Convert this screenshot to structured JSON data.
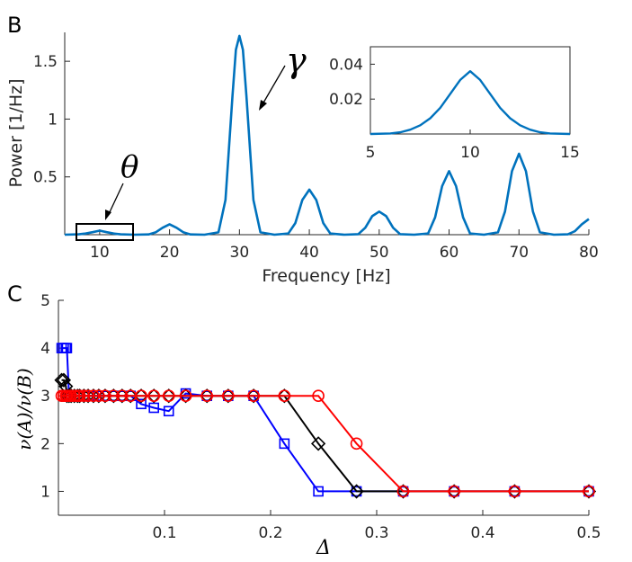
{
  "colors": {
    "spectrum": "#0072BD",
    "blue": "#0000FF",
    "black": "#000000",
    "red": "#FF0000",
    "axis": "#262626"
  },
  "chart_data": [
    {
      "panel": "B",
      "type": "line",
      "xlabel": "Frequency [Hz]",
      "ylabel": "Power [1/Hz]",
      "xlim": [
        5,
        80
      ],
      "ylim": [
        0,
        1.75
      ],
      "xticks": [
        "10",
        "20",
        "30",
        "40",
        "50",
        "60",
        "70",
        "80"
      ],
      "yticks": [
        "0.5",
        "1",
        "1.5"
      ],
      "x": [
        5,
        7,
        8,
        9,
        10,
        11,
        12,
        13,
        15,
        17,
        18,
        19,
        20,
        21,
        22,
        23,
        25,
        27,
        28,
        29,
        29.5,
        30,
        30.5,
        31,
        32,
        33,
        35,
        37,
        38,
        39,
        40,
        41,
        42,
        43,
        45,
        47,
        48,
        49,
        50,
        51,
        52,
        53,
        55,
        57,
        58,
        59,
        60,
        61,
        62,
        63,
        65,
        67,
        68,
        69,
        70,
        71,
        72,
        73,
        75,
        77,
        78,
        79,
        80
      ],
      "y": [
        0,
        0.003,
        0.01,
        0.022,
        0.035,
        0.022,
        0.01,
        0.003,
        0,
        0.002,
        0.02,
        0.06,
        0.09,
        0.06,
        0.02,
        0.002,
        0,
        0.02,
        0.3,
        1.2,
        1.6,
        1.72,
        1.6,
        1.2,
        0.3,
        0.02,
        0,
        0.01,
        0.1,
        0.3,
        0.39,
        0.3,
        0.1,
        0.01,
        0,
        0.005,
        0.06,
        0.16,
        0.2,
        0.16,
        0.06,
        0.005,
        0,
        0.01,
        0.15,
        0.42,
        0.55,
        0.42,
        0.15,
        0.01,
        0,
        0.02,
        0.2,
        0.55,
        0.7,
        0.55,
        0.2,
        0.02,
        0,
        0.003,
        0.03,
        0.09,
        0.135
      ],
      "annotations": [
        "γ",
        "θ"
      ],
      "inset": {
        "type": "line",
        "xlim": [
          5,
          15
        ],
        "ylim": [
          0,
          0.05
        ],
        "xticks": [
          "5",
          "10",
          "15"
        ],
        "yticks": [
          "0.02",
          "0.04"
        ],
        "x": [
          5,
          6,
          6.5,
          7,
          7.5,
          8,
          8.5,
          9,
          9.5,
          10,
          10.5,
          11,
          11.5,
          12,
          12.5,
          13,
          13.5,
          14,
          15
        ],
        "y": [
          0,
          0.0003,
          0.001,
          0.0025,
          0.005,
          0.009,
          0.015,
          0.023,
          0.031,
          0.036,
          0.031,
          0.023,
          0.015,
          0.009,
          0.005,
          0.0025,
          0.001,
          0.0003,
          0
        ]
      }
    },
    {
      "panel": "C",
      "type": "line",
      "xlabel": "Δ",
      "ylabel": "ν(A)/ν(B)",
      "xlim": [
        0,
        0.5
      ],
      "ylim": [
        0.5,
        5
      ],
      "xticks": [
        "0.1",
        "0.2",
        "0.3",
        "0.4",
        "0.5"
      ],
      "yticks": [
        "1",
        "2",
        "3",
        "4",
        "5"
      ],
      "series": [
        {
          "name": "blue squares",
          "marker": "square",
          "color": "#0000FF",
          "x": [
            0.003,
            0.005,
            0.007,
            0.008,
            0.01,
            0.012,
            0.015,
            0.018,
            0.02,
            0.024,
            0.028,
            0.033,
            0.038,
            0.044,
            0.052,
            0.06,
            0.068,
            0.078,
            0.09,
            0.104,
            0.12,
            0.14,
            0.16,
            0.184,
            0.213,
            0.245,
            0.281,
            0.325,
            0.373,
            0.43,
            0.5
          ],
          "y": [
            4,
            4,
            4,
            4,
            3,
            3,
            3,
            3,
            3,
            3,
            3,
            3,
            3,
            3,
            3,
            3,
            3,
            2.83,
            2.75,
            2.68,
            3.05,
            3,
            3,
            3,
            2,
            1,
            1,
            1,
            1,
            1,
            1
          ]
        },
        {
          "name": "black diamonds",
          "marker": "diamond",
          "color": "#000000",
          "x": [
            0.003,
            0.005,
            0.007,
            0.008,
            0.01,
            0.012,
            0.015,
            0.018,
            0.02,
            0.024,
            0.028,
            0.033,
            0.038,
            0.044,
            0.052,
            0.06,
            0.068,
            0.078,
            0.09,
            0.104,
            0.12,
            0.14,
            0.16,
            0.184,
            0.213,
            0.245,
            0.281,
            0.325,
            0.373,
            0.43,
            0.5
          ],
          "y": [
            3.33,
            3.33,
            3.2,
            3,
            3,
            3,
            3,
            3,
            3,
            3,
            3,
            3,
            3,
            3,
            3,
            3,
            3,
            3,
            3,
            3,
            3,
            3,
            3,
            3,
            3,
            2,
            1,
            1,
            1,
            1,
            1
          ]
        },
        {
          "name": "red circles",
          "marker": "circle",
          "color": "#FF0000",
          "x": [
            0.003,
            0.005,
            0.007,
            0.008,
            0.01,
            0.012,
            0.015,
            0.018,
            0.02,
            0.024,
            0.028,
            0.033,
            0.038,
            0.044,
            0.052,
            0.06,
            0.068,
            0.078,
            0.09,
            0.104,
            0.12,
            0.14,
            0.16,
            0.184,
            0.213,
            0.245,
            0.281,
            0.325,
            0.373,
            0.43,
            0.5
          ],
          "y": [
            3,
            3,
            3,
            3,
            3,
            3,
            3,
            3,
            3,
            3,
            3,
            3,
            3,
            3,
            3,
            3,
            3,
            3,
            3,
            3,
            3,
            3,
            3,
            3,
            3,
            3,
            2,
            1,
            1,
            1,
            1
          ]
        }
      ]
    }
  ]
}
